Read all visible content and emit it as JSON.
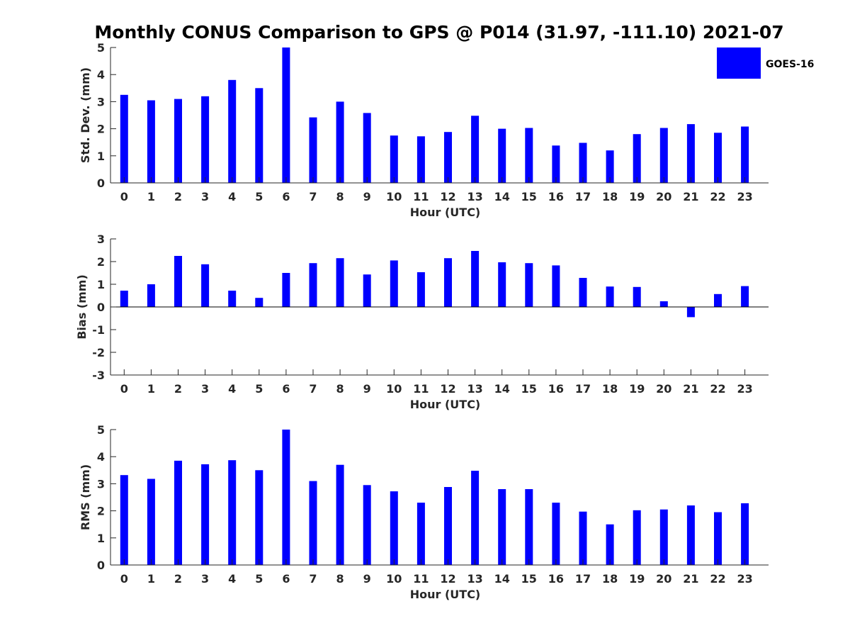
{
  "title": "Monthly CONUS Comparison to GPS @ P014 (31.97, -111.10) 2021-07",
  "colors": {
    "bar": "#0000ff",
    "axis": "#262626",
    "background": "#ffffff"
  },
  "legend": {
    "label": "GOES-16",
    "placement": "top-right"
  },
  "chart_data": [
    {
      "type": "bar",
      "categories": [
        "0",
        "1",
        "2",
        "3",
        "4",
        "5",
        "6",
        "7",
        "8",
        "9",
        "10",
        "11",
        "12",
        "13",
        "14",
        "15",
        "16",
        "17",
        "18",
        "19",
        "20",
        "21",
        "22",
        "23"
      ],
      "series": [
        {
          "name": "GOES-16",
          "values": [
            3.25,
            3.05,
            3.1,
            3.2,
            3.8,
            3.5,
            5.0,
            2.42,
            3.0,
            2.58,
            1.75,
            1.72,
            1.88,
            2.48,
            2.0,
            2.03,
            1.38,
            1.48,
            1.2,
            1.8,
            2.03,
            2.17,
            1.85,
            2.08
          ]
        }
      ],
      "xlabel": "Hour (UTC)",
      "ylabel": "Std. Dev. (mm)",
      "ylim": [
        0,
        5
      ],
      "yticks": [
        "0",
        "1",
        "2",
        "3",
        "4",
        "5"
      ],
      "grid": false
    },
    {
      "type": "bar",
      "categories": [
        "0",
        "1",
        "2",
        "3",
        "4",
        "5",
        "6",
        "7",
        "8",
        "9",
        "10",
        "11",
        "12",
        "13",
        "14",
        "15",
        "16",
        "17",
        "18",
        "19",
        "20",
        "21",
        "22",
        "23"
      ],
      "series": [
        {
          "name": "GOES-16",
          "values": [
            0.72,
            1.0,
            2.25,
            1.88,
            0.72,
            0.4,
            1.5,
            1.93,
            2.15,
            1.43,
            2.05,
            1.53,
            2.15,
            2.47,
            1.97,
            1.93,
            1.83,
            1.28,
            0.9,
            0.88,
            0.25,
            -0.45,
            0.57,
            0.92
          ]
        }
      ],
      "xlabel": "Hour (UTC)",
      "ylabel": "Bias (mm)",
      "ylim": [
        -3,
        3
      ],
      "yticks": [
        "-3",
        "-2",
        "-1",
        "0",
        "1",
        "2",
        "3"
      ],
      "grid": false
    },
    {
      "type": "bar",
      "categories": [
        "0",
        "1",
        "2",
        "3",
        "4",
        "5",
        "6",
        "7",
        "8",
        "9",
        "10",
        "11",
        "12",
        "13",
        "14",
        "15",
        "16",
        "17",
        "18",
        "19",
        "20",
        "21",
        "22",
        "23"
      ],
      "series": [
        {
          "name": "GOES-16",
          "values": [
            3.32,
            3.18,
            3.85,
            3.72,
            3.87,
            3.5,
            5.0,
            3.1,
            3.7,
            2.95,
            2.72,
            2.3,
            2.88,
            3.48,
            2.8,
            2.8,
            2.3,
            1.97,
            1.5,
            2.02,
            2.05,
            2.2,
            1.95,
            2.28
          ]
        }
      ],
      "xlabel": "Hour (UTC)",
      "ylabel": "RMS (mm)",
      "ylim": [
        0,
        5
      ],
      "yticks": [
        "0",
        "1",
        "2",
        "3",
        "4",
        "5"
      ],
      "grid": false
    }
  ]
}
